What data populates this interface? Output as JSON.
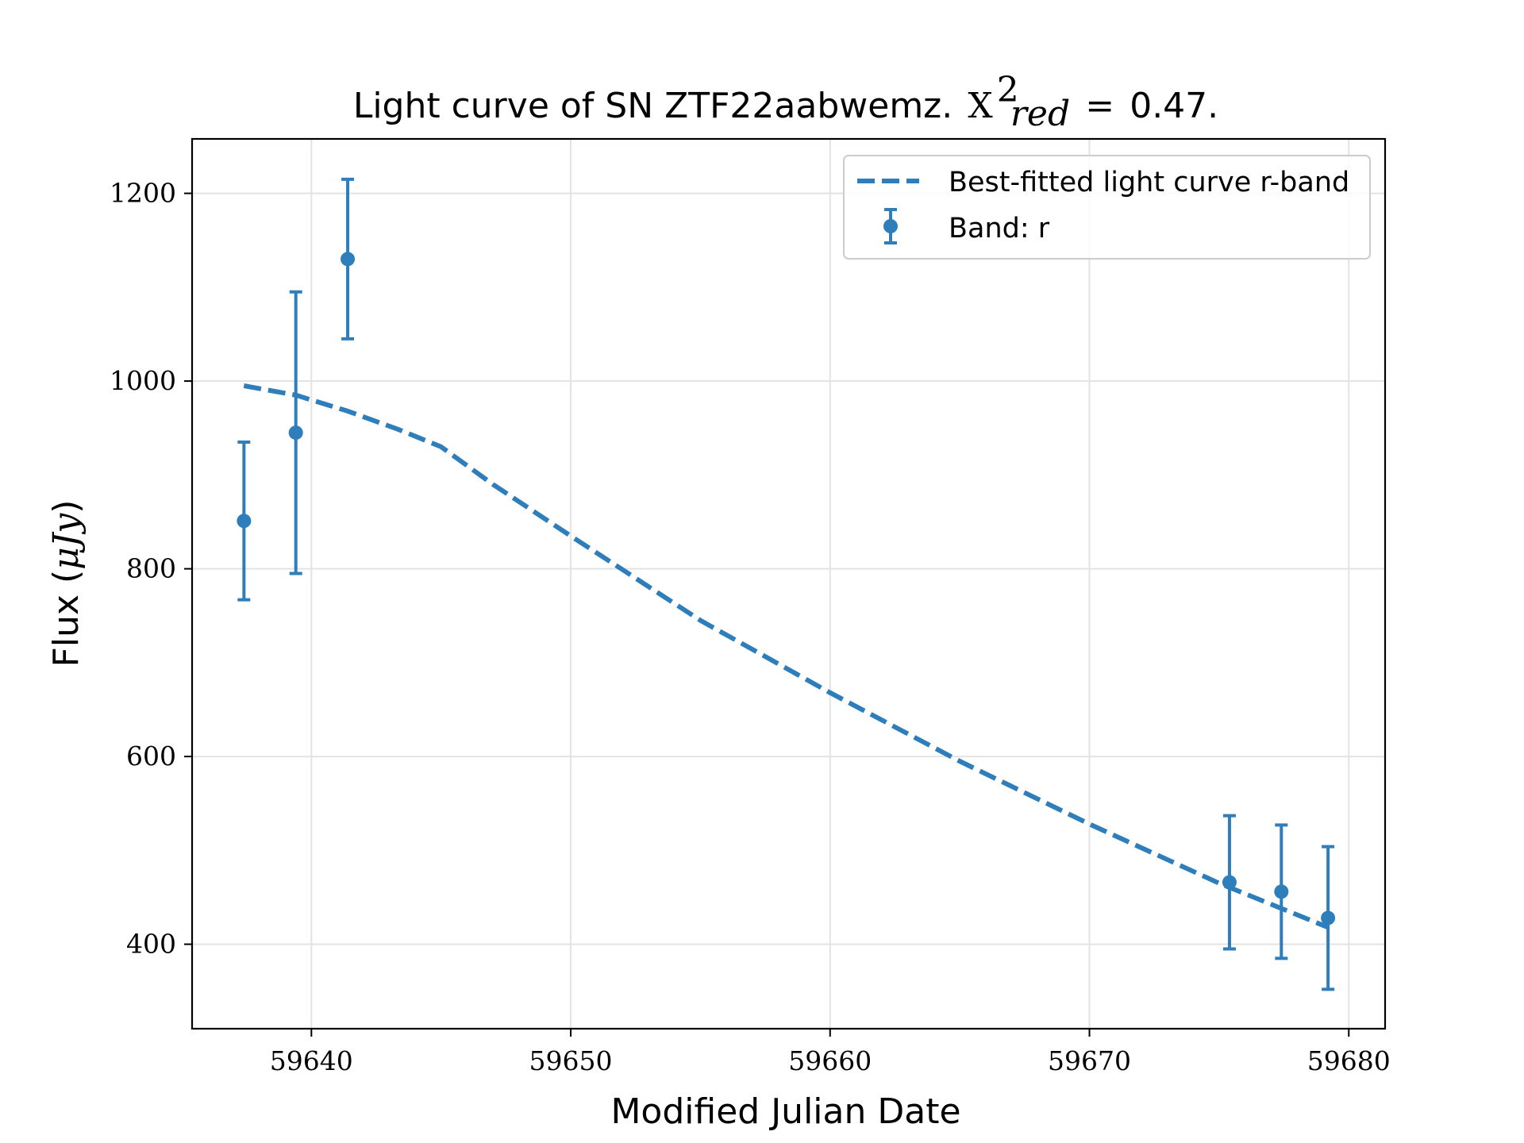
{
  "chart_data": {
    "type": "scatter",
    "title": {
      "text": "Light curve of SN ZTF22aabwemz.",
      "chi_symbol": "X",
      "chi_superscript": "2",
      "chi_subscript": "red",
      "equals": "=",
      "value": "0.47."
    },
    "xlabel": "Modified Julian Date",
    "ylabel": {
      "text": "Flux (",
      "math": "μJy",
      "close": ")"
    },
    "xlim": [
      59635.4,
      59681.4
    ],
    "ylim": [
      310,
      1258
    ],
    "x_ticks": [
      59640,
      59650,
      59660,
      59670,
      59680
    ],
    "y_ticks": [
      400,
      600,
      800,
      1000,
      1200
    ],
    "grid": true,
    "legend_position": "top-right",
    "color": "#2f7ebc",
    "series": [
      {
        "name": "Best-fitted light curve r-band",
        "style": "dashed-line",
        "x": [
          59637.4,
          59639.4,
          59641.4,
          59643.4,
          59645.0,
          59647.0,
          59650.0,
          59655.0,
          59660.0,
          59665.0,
          59670.0,
          59675.0,
          59679.2
        ],
        "y": [
          995,
          985,
          968,
          948,
          930,
          890,
          835,
          745,
          668,
          595,
          528,
          465,
          418
        ]
      },
      {
        "name": "Band: r",
        "style": "errorbar",
        "x": [
          59637.4,
          59639.4,
          59641.4,
          59675.4,
          59677.4,
          59679.2
        ],
        "y": [
          851,
          945,
          1130,
          466,
          456,
          428
        ],
        "yerr_low": [
          84,
          150,
          85,
          71,
          71,
          76
        ],
        "yerr_high": [
          84,
          150,
          85,
          71,
          71,
          76
        ]
      }
    ]
  }
}
